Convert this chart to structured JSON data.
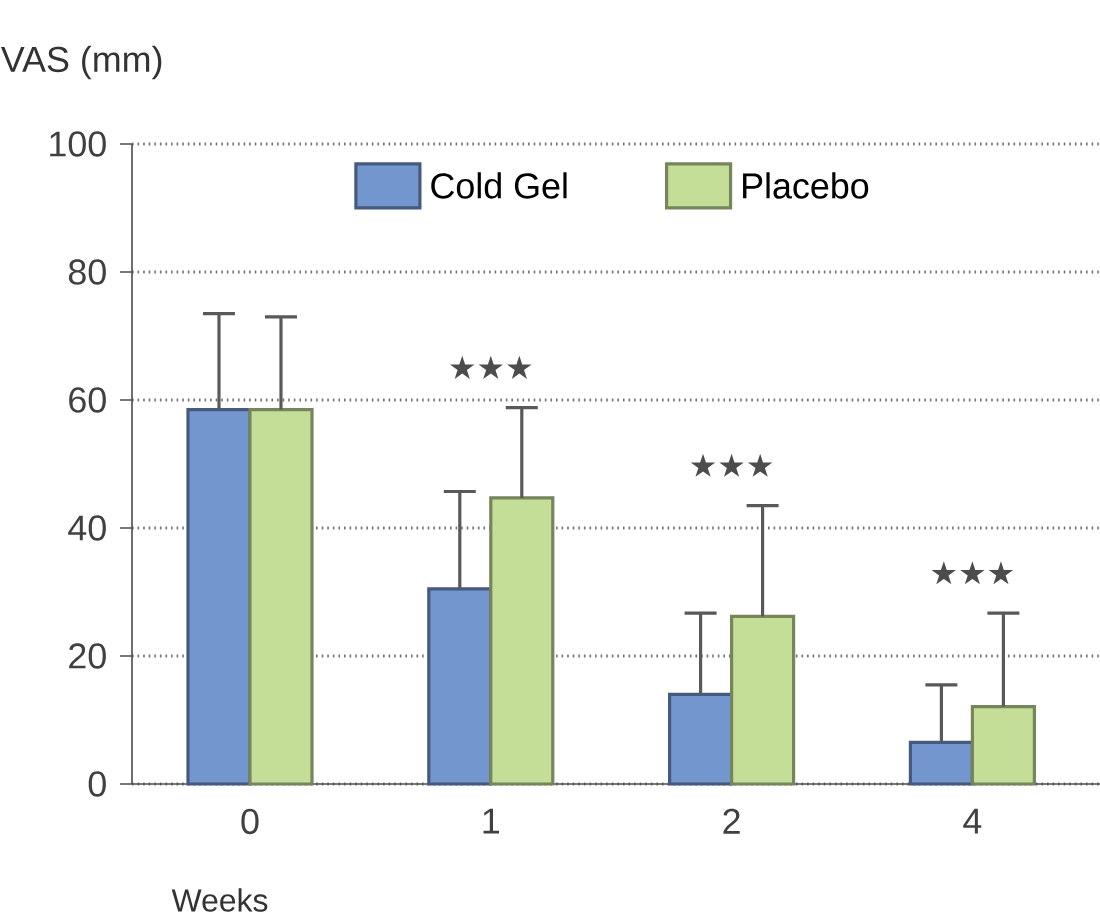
{
  "chart_data": {
    "type": "bar",
    "ylabel": "VAS (mm)",
    "xlabel": "Weeks",
    "categories": [
      "0",
      "1",
      "2",
      "4"
    ],
    "series": [
      {
        "name": "Cold Gel",
        "color": "#7396cf",
        "values": [
          58.5,
          30.5,
          14,
          6.5
        ],
        "errors": [
          [
            58.5,
            73.5
          ],
          [
            30.5,
            45.7
          ],
          [
            14,
            26.7
          ],
          [
            6.5,
            15.5
          ]
        ]
      },
      {
        "name": "Placebo",
        "color": "#c4de98",
        "values": [
          58.5,
          44.7,
          26.2,
          12.1
        ],
        "errors": [
          [
            58.5,
            73
          ],
          [
            44.7,
            58.8
          ],
          [
            26.2,
            43.5
          ],
          [
            12.1,
            26.7
          ]
        ]
      }
    ],
    "ylim": [
      0,
      100
    ],
    "yticks": [
      0,
      20,
      40,
      60,
      80,
      100
    ],
    "grid": "y",
    "legend": "top",
    "annotations": [
      "★★★",
      "★★★",
      "★★★"
    ]
  }
}
